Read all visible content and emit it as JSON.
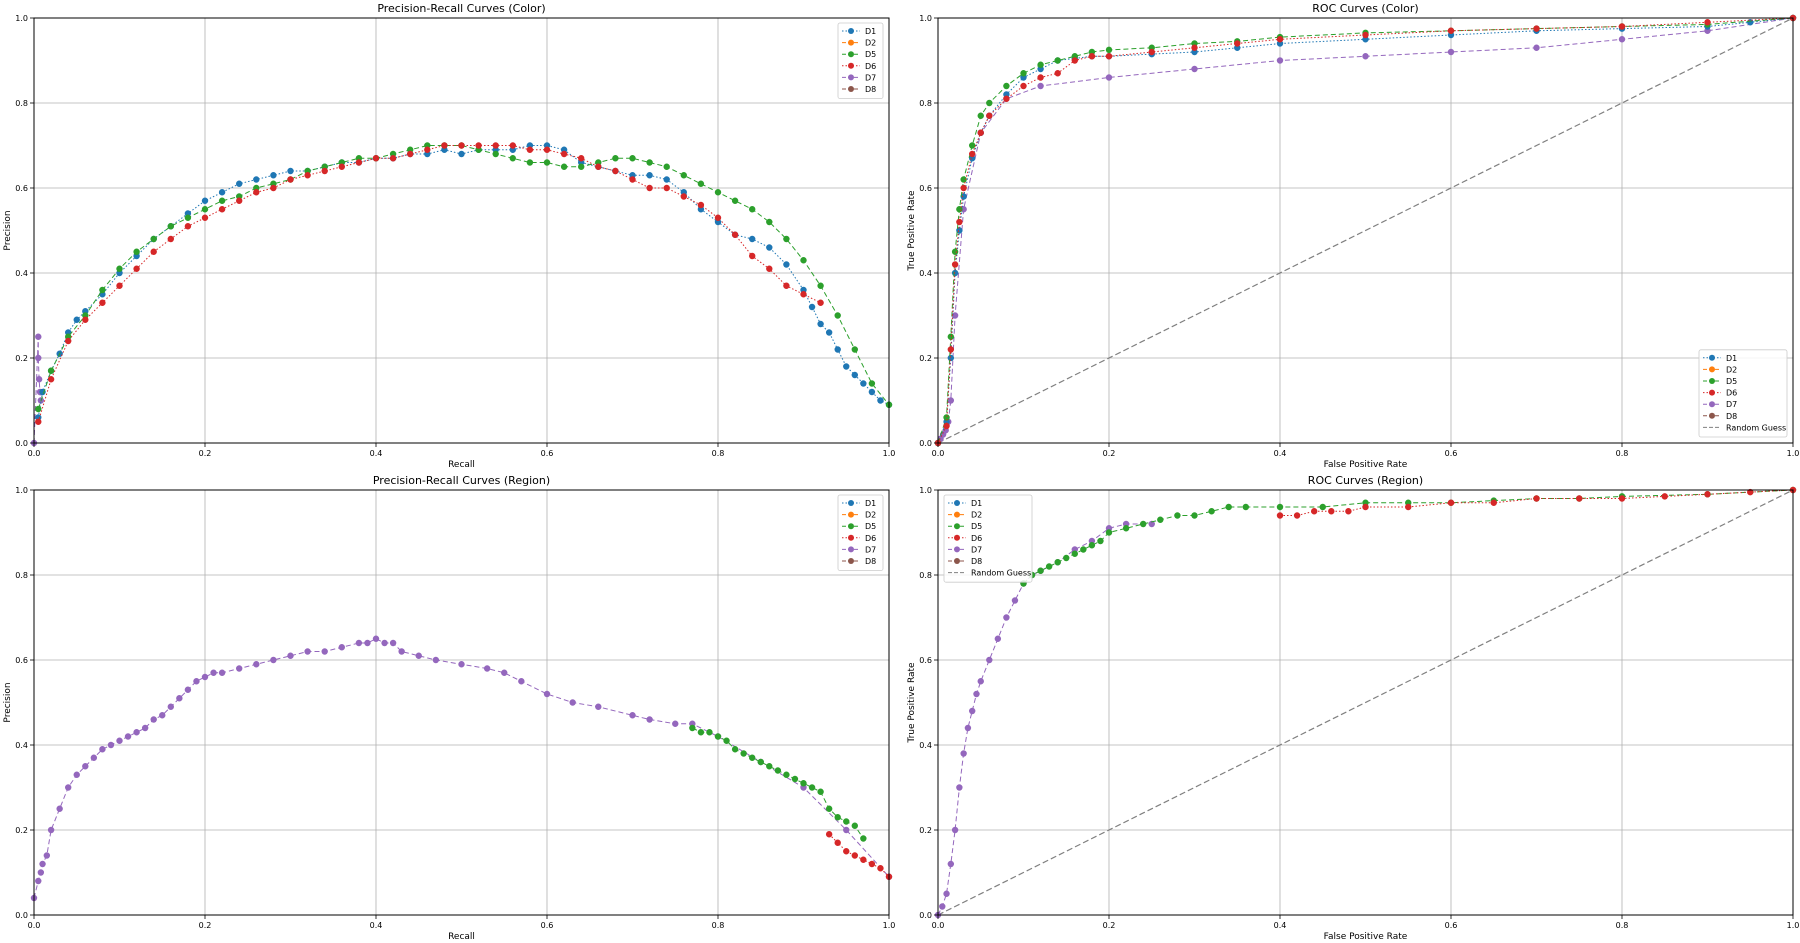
{
  "colors": {
    "D1": "#1f77b4",
    "D2": "#ff7f0e",
    "D5": "#2ca02c",
    "D6": "#d62728",
    "D7": "#9467bd",
    "D8": "#8c564b",
    "random": "#808080",
    "grid": "#b0b0b0"
  },
  "chart_data": [
    {
      "type": "line",
      "title": "Precision-Recall Curves (Color)",
      "xlabel": "Recall",
      "ylabel": "Precision",
      "xlim": [
        0,
        1
      ],
      "ylim": [
        0,
        1
      ],
      "ticks": [
        0.0,
        0.2,
        0.4,
        0.6,
        0.8,
        1.0
      ],
      "tick_labels": [
        "0.0",
        "0.2",
        "0.4",
        "0.6",
        "0.8",
        "1.0"
      ],
      "grid": true,
      "legend": "upper-right",
      "legend_entries": [
        "D1",
        "D2",
        "D5",
        "D6",
        "D7",
        "D8"
      ],
      "series": [
        {
          "name": "D7",
          "style": "dashed",
          "x": [
            0.0,
            0.005,
            0.005,
            0.006,
            0.007,
            0.008
          ],
          "y": [
            0.0,
            0.25,
            0.2,
            0.15,
            0.12,
            0.1
          ]
        },
        {
          "name": "D1",
          "style": "dotted",
          "x": [
            0.005,
            0.01,
            0.02,
            0.03,
            0.04,
            0.05,
            0.06,
            0.08,
            0.1,
            0.12,
            0.14,
            0.16,
            0.18,
            0.2,
            0.22,
            0.24,
            0.26,
            0.28,
            0.3,
            0.32,
            0.34,
            0.36,
            0.38,
            0.4,
            0.42,
            0.44,
            0.46,
            0.48,
            0.5,
            0.52,
            0.54,
            0.56,
            0.58,
            0.6,
            0.62,
            0.64,
            0.66,
            0.68,
            0.7,
            0.72,
            0.74,
            0.76,
            0.78,
            0.8,
            0.82,
            0.84,
            0.86,
            0.88,
            0.9,
            0.91,
            0.92,
            0.93,
            0.94,
            0.95,
            0.96,
            0.97,
            0.98,
            0.99,
            1.0
          ],
          "y": [
            0.06,
            0.12,
            0.17,
            0.21,
            0.26,
            0.29,
            0.31,
            0.35,
            0.4,
            0.44,
            0.48,
            0.51,
            0.54,
            0.57,
            0.59,
            0.61,
            0.62,
            0.63,
            0.64,
            0.64,
            0.65,
            0.66,
            0.66,
            0.67,
            0.67,
            0.68,
            0.68,
            0.69,
            0.68,
            0.69,
            0.69,
            0.69,
            0.7,
            0.7,
            0.69,
            0.66,
            0.65,
            0.64,
            0.63,
            0.63,
            0.62,
            0.59,
            0.55,
            0.52,
            0.49,
            0.48,
            0.46,
            0.42,
            0.36,
            0.32,
            0.28,
            0.26,
            0.22,
            0.18,
            0.16,
            0.14,
            0.12,
            0.1,
            0.09
          ]
        },
        {
          "name": "D5",
          "style": "dashed",
          "x": [
            0.005,
            0.02,
            0.04,
            0.06,
            0.08,
            0.1,
            0.12,
            0.14,
            0.16,
            0.18,
            0.2,
            0.22,
            0.24,
            0.26,
            0.28,
            0.3,
            0.32,
            0.34,
            0.36,
            0.38,
            0.4,
            0.42,
            0.44,
            0.46,
            0.48,
            0.5,
            0.52,
            0.54,
            0.56,
            0.58,
            0.6,
            0.62,
            0.64,
            0.66,
            0.68,
            0.7,
            0.72,
            0.74,
            0.76,
            0.78,
            0.8,
            0.82,
            0.84,
            0.86,
            0.88,
            0.9,
            0.92,
            0.94,
            0.96,
            0.98,
            1.0
          ],
          "y": [
            0.08,
            0.17,
            0.25,
            0.3,
            0.36,
            0.41,
            0.45,
            0.48,
            0.51,
            0.53,
            0.55,
            0.57,
            0.58,
            0.6,
            0.61,
            0.62,
            0.64,
            0.65,
            0.66,
            0.67,
            0.67,
            0.68,
            0.69,
            0.7,
            0.7,
            0.7,
            0.69,
            0.68,
            0.67,
            0.66,
            0.66,
            0.65,
            0.65,
            0.66,
            0.67,
            0.67,
            0.66,
            0.65,
            0.63,
            0.61,
            0.59,
            0.57,
            0.55,
            0.52,
            0.48,
            0.43,
            0.37,
            0.3,
            0.22,
            0.14,
            0.09
          ]
        },
        {
          "name": "D6",
          "style": "dotted",
          "x": [
            0.005,
            0.02,
            0.04,
            0.06,
            0.08,
            0.1,
            0.12,
            0.14,
            0.16,
            0.18,
            0.2,
            0.22,
            0.24,
            0.26,
            0.28,
            0.3,
            0.32,
            0.34,
            0.36,
            0.38,
            0.4,
            0.42,
            0.44,
            0.46,
            0.48,
            0.5,
            0.52,
            0.54,
            0.56,
            0.58,
            0.6,
            0.62,
            0.64,
            0.66,
            0.68,
            0.7,
            0.72,
            0.74,
            0.76,
            0.78,
            0.8,
            0.82,
            0.84,
            0.86,
            0.88,
            0.9,
            0.92
          ],
          "y": [
            0.05,
            0.15,
            0.24,
            0.29,
            0.33,
            0.37,
            0.41,
            0.45,
            0.48,
            0.51,
            0.53,
            0.55,
            0.57,
            0.59,
            0.6,
            0.62,
            0.63,
            0.64,
            0.65,
            0.66,
            0.67,
            0.67,
            0.68,
            0.69,
            0.7,
            0.7,
            0.7,
            0.7,
            0.7,
            0.69,
            0.69,
            0.68,
            0.67,
            0.65,
            0.64,
            0.62,
            0.6,
            0.6,
            0.58,
            0.56,
            0.53,
            0.49,
            0.44,
            0.41,
            0.37,
            0.35,
            0.33
          ]
        }
      ]
    },
    {
      "type": "line",
      "title": "ROC Curves (Color)",
      "xlabel": "False Positive Rate",
      "ylabel": "True Positive Rate",
      "xlim": [
        0,
        1
      ],
      "ylim": [
        0,
        1
      ],
      "ticks": [
        0.0,
        0.2,
        0.4,
        0.6,
        0.8,
        1.0
      ],
      "tick_labels": [
        "0.0",
        "0.2",
        "0.4",
        "0.6",
        "0.8",
        "1.0"
      ],
      "grid": true,
      "legend": "lower-right",
      "legend_entries": [
        "D1",
        "D2",
        "D5",
        "D6",
        "D7",
        "D8",
        "Random Guess"
      ],
      "random_guess": true,
      "series": [
        {
          "name": "D7",
          "style": "dashed",
          "x": [
            0.0,
            0.003,
            0.006,
            0.009,
            0.012,
            0.015,
            0.02,
            0.03,
            0.05,
            0.08,
            0.12,
            0.2,
            0.3,
            0.4,
            0.5,
            0.6,
            0.7,
            0.8,
            0.9,
            1.0
          ],
          "y": [
            0.0,
            0.01,
            0.02,
            0.03,
            0.05,
            0.1,
            0.3,
            0.55,
            0.73,
            0.81,
            0.84,
            0.86,
            0.88,
            0.9,
            0.91,
            0.92,
            0.93,
            0.95,
            0.97,
            1.0
          ]
        },
        {
          "name": "D1",
          "style": "dotted",
          "x": [
            0.0,
            0.01,
            0.015,
            0.02,
            0.025,
            0.03,
            0.04,
            0.05,
            0.06,
            0.08,
            0.1,
            0.12,
            0.14,
            0.16,
            0.18,
            0.2,
            0.25,
            0.3,
            0.35,
            0.4,
            0.5,
            0.6,
            0.7,
            0.8,
            0.9,
            0.95,
            1.0
          ],
          "y": [
            0.0,
            0.05,
            0.2,
            0.4,
            0.5,
            0.58,
            0.67,
            0.73,
            0.77,
            0.82,
            0.86,
            0.88,
            0.9,
            0.905,
            0.91,
            0.91,
            0.915,
            0.92,
            0.93,
            0.94,
            0.95,
            0.96,
            0.97,
            0.975,
            0.98,
            0.99,
            1.0
          ]
        },
        {
          "name": "D5",
          "style": "dashed",
          "x": [
            0.0,
            0.01,
            0.015,
            0.02,
            0.025,
            0.03,
            0.04,
            0.05,
            0.06,
            0.08,
            0.1,
            0.12,
            0.14,
            0.16,
            0.18,
            0.2,
            0.25,
            0.3,
            0.35,
            0.4,
            0.5,
            0.6,
            0.7,
            0.8,
            0.9,
            1.0
          ],
          "y": [
            0.0,
            0.06,
            0.25,
            0.45,
            0.55,
            0.62,
            0.7,
            0.77,
            0.8,
            0.84,
            0.87,
            0.89,
            0.9,
            0.91,
            0.92,
            0.925,
            0.93,
            0.94,
            0.945,
            0.955,
            0.965,
            0.97,
            0.975,
            0.98,
            0.985,
            1.0
          ]
        },
        {
          "name": "D6",
          "style": "dotted",
          "x": [
            0.0,
            0.01,
            0.015,
            0.02,
            0.025,
            0.03,
            0.04,
            0.05,
            0.06,
            0.08,
            0.1,
            0.12,
            0.14,
            0.16,
            0.18,
            0.2,
            0.25,
            0.3,
            0.35,
            0.4,
            0.5,
            0.6,
            0.7,
            0.8,
            0.9,
            1.0
          ],
          "y": [
            0.0,
            0.04,
            0.22,
            0.42,
            0.52,
            0.6,
            0.68,
            0.73,
            0.77,
            0.81,
            0.84,
            0.86,
            0.87,
            0.9,
            0.91,
            0.91,
            0.92,
            0.93,
            0.94,
            0.95,
            0.96,
            0.97,
            0.975,
            0.98,
            0.99,
            1.0
          ]
        }
      ]
    },
    {
      "type": "line",
      "title": "Precision-Recall Curves (Region)",
      "xlabel": "Recall",
      "ylabel": "Precision",
      "xlim": [
        0,
        1
      ],
      "ylim": [
        0,
        1
      ],
      "ticks": [
        0.0,
        0.2,
        0.4,
        0.6,
        0.8,
        1.0
      ],
      "tick_labels": [
        "0.0",
        "0.2",
        "0.4",
        "0.6",
        "0.8",
        "1.0"
      ],
      "grid": true,
      "legend": "upper-right",
      "legend_entries": [
        "D1",
        "D2",
        "D5",
        "D6",
        "D7",
        "D8"
      ],
      "series": [
        {
          "name": "D7",
          "style": "dashed",
          "x": [
            0.0,
            0.005,
            0.008,
            0.01,
            0.015,
            0.02,
            0.03,
            0.04,
            0.05,
            0.06,
            0.07,
            0.08,
            0.09,
            0.1,
            0.11,
            0.12,
            0.13,
            0.14,
            0.15,
            0.16,
            0.17,
            0.18,
            0.19,
            0.2,
            0.21,
            0.22,
            0.24,
            0.26,
            0.28,
            0.3,
            0.32,
            0.34,
            0.36,
            0.38,
            0.39,
            0.4,
            0.41,
            0.42,
            0.43,
            0.45,
            0.47,
            0.5,
            0.53,
            0.55,
            0.57,
            0.6,
            0.63,
            0.66,
            0.7,
            0.72,
            0.75,
            0.77,
            0.8,
            0.85,
            0.9,
            0.95,
            1.0
          ],
          "y": [
            0.04,
            0.08,
            0.1,
            0.12,
            0.14,
            0.2,
            0.25,
            0.3,
            0.33,
            0.35,
            0.37,
            0.39,
            0.4,
            0.41,
            0.42,
            0.43,
            0.44,
            0.46,
            0.47,
            0.49,
            0.51,
            0.53,
            0.55,
            0.56,
            0.57,
            0.57,
            0.58,
            0.59,
            0.6,
            0.61,
            0.62,
            0.62,
            0.63,
            0.64,
            0.64,
            0.65,
            0.64,
            0.64,
            0.62,
            0.61,
            0.6,
            0.59,
            0.58,
            0.57,
            0.55,
            0.52,
            0.5,
            0.49,
            0.47,
            0.46,
            0.45,
            0.45,
            0.42,
            0.36,
            0.3,
            0.2,
            0.09
          ]
        },
        {
          "name": "D5",
          "style": "dashed",
          "x": [
            0.77,
            0.78,
            0.79,
            0.8,
            0.81,
            0.82,
            0.83,
            0.84,
            0.85,
            0.86,
            0.87,
            0.88,
            0.89,
            0.9,
            0.91,
            0.92,
            0.93,
            0.94,
            0.95,
            0.96,
            0.97
          ],
          "y": [
            0.44,
            0.43,
            0.43,
            0.42,
            0.41,
            0.39,
            0.38,
            0.37,
            0.36,
            0.35,
            0.34,
            0.33,
            0.32,
            0.31,
            0.3,
            0.29,
            0.25,
            0.23,
            0.22,
            0.21,
            0.18
          ]
        },
        {
          "name": "D6",
          "style": "dotted",
          "x": [
            0.93,
            0.94,
            0.95,
            0.96,
            0.97,
            0.98,
            0.99,
            1.0
          ],
          "y": [
            0.19,
            0.17,
            0.15,
            0.14,
            0.13,
            0.12,
            0.11,
            0.09
          ]
        }
      ]
    },
    {
      "type": "line",
      "title": "ROC Curves (Region)",
      "xlabel": "False Positive Rate",
      "ylabel": "True Positive Rate",
      "xlim": [
        0,
        1
      ],
      "ylim": [
        0,
        1
      ],
      "ticks": [
        0.0,
        0.2,
        0.4,
        0.6,
        0.8,
        1.0
      ],
      "tick_labels": [
        "0.0",
        "0.2",
        "0.4",
        "0.6",
        "0.8",
        "1.0"
      ],
      "grid": true,
      "legend": "upper-left",
      "legend_entries": [
        "D1",
        "D2",
        "D5",
        "D6",
        "D7",
        "D8",
        "Random Guess"
      ],
      "random_guess": true,
      "series": [
        {
          "name": "D7",
          "style": "dashed",
          "x": [
            0.0,
            0.005,
            0.01,
            0.015,
            0.02,
            0.025,
            0.03,
            0.035,
            0.04,
            0.045,
            0.05,
            0.06,
            0.07,
            0.08,
            0.09,
            0.1,
            0.11,
            0.12,
            0.14,
            0.16,
            0.18,
            0.2,
            0.22,
            0.25
          ],
          "y": [
            0.0,
            0.02,
            0.05,
            0.12,
            0.2,
            0.3,
            0.38,
            0.44,
            0.48,
            0.52,
            0.55,
            0.6,
            0.65,
            0.7,
            0.74,
            0.78,
            0.8,
            0.81,
            0.83,
            0.86,
            0.88,
            0.91,
            0.92,
            0.92
          ]
        },
        {
          "name": "D5",
          "style": "dashed",
          "x": [
            0.1,
            0.11,
            0.12,
            0.13,
            0.14,
            0.15,
            0.16,
            0.17,
            0.18,
            0.19,
            0.2,
            0.22,
            0.24,
            0.26,
            0.28,
            0.3,
            0.32,
            0.34,
            0.36,
            0.4,
            0.45,
            0.5,
            0.55,
            0.6,
            0.65,
            0.7,
            0.75,
            0.8,
            0.9,
            1.0
          ],
          "y": [
            0.78,
            0.8,
            0.81,
            0.82,
            0.83,
            0.84,
            0.85,
            0.86,
            0.87,
            0.88,
            0.9,
            0.91,
            0.92,
            0.93,
            0.94,
            0.94,
            0.95,
            0.96,
            0.96,
            0.96,
            0.96,
            0.97,
            0.97,
            0.97,
            0.975,
            0.98,
            0.98,
            0.985,
            0.99,
            1.0
          ]
        },
        {
          "name": "D6",
          "style": "dotted",
          "x": [
            0.4,
            0.42,
            0.44,
            0.46,
            0.48,
            0.5,
            0.55,
            0.6,
            0.65,
            0.7,
            0.75,
            0.8,
            0.85,
            0.9,
            0.95,
            1.0
          ],
          "y": [
            0.94,
            0.94,
            0.95,
            0.95,
            0.95,
            0.96,
            0.96,
            0.97,
            0.97,
            0.98,
            0.98,
            0.98,
            0.985,
            0.99,
            0.995,
            1.0
          ]
        }
      ]
    }
  ]
}
